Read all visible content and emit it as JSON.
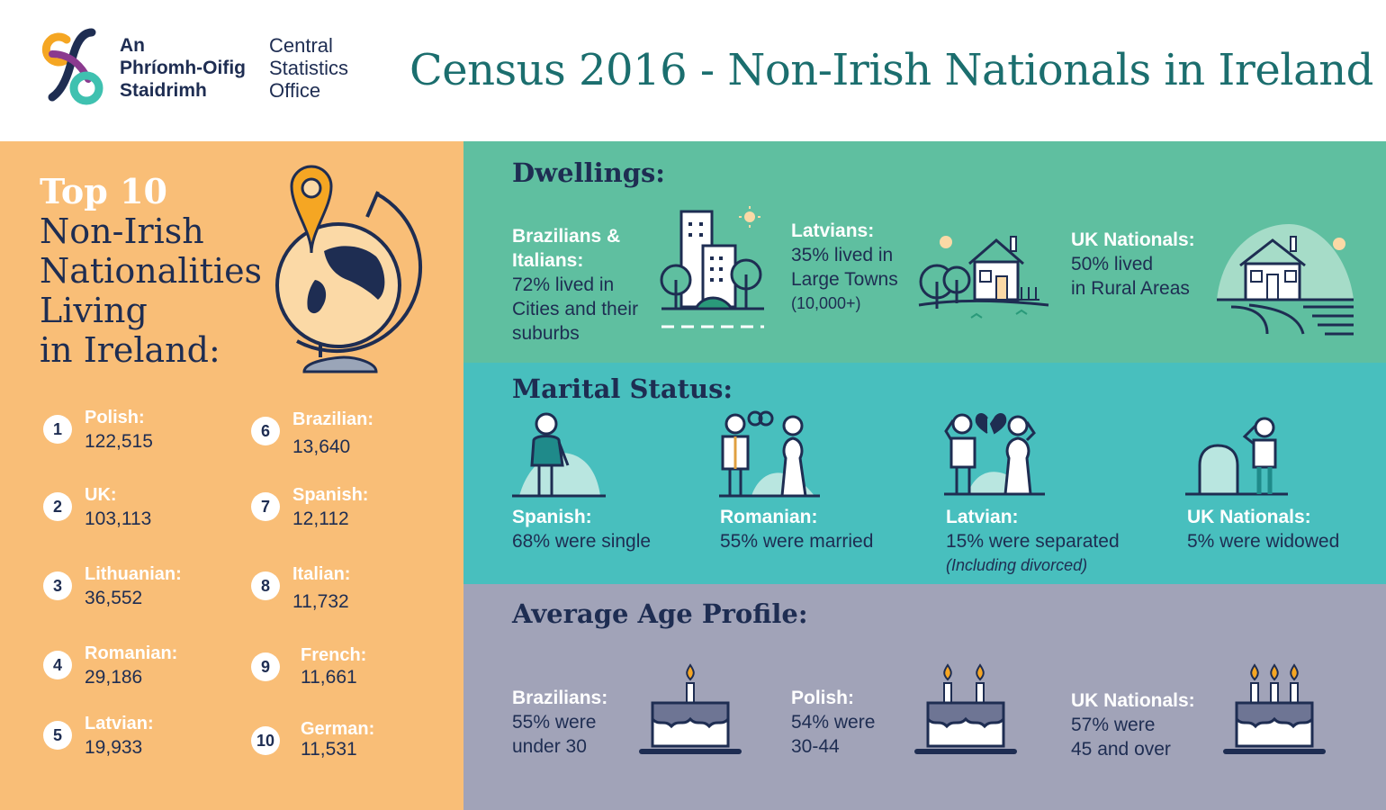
{
  "header": {
    "logo_irish": [
      "An",
      "Phríomh-Oifig",
      "Staidrimh"
    ],
    "logo_english": [
      "Central",
      "Statistics",
      "Office"
    ],
    "title": "Census 2016 - Non-Irish Nationals in Ireland"
  },
  "top10": {
    "title_highlight": "Top 10",
    "title_lines": [
      "Non-Irish",
      "Nationalities",
      "Living",
      "in Ireland:"
    ],
    "items": [
      {
        "rank": "1",
        "nationality": "Polish:",
        "count": "122,515"
      },
      {
        "rank": "2",
        "nationality": "UK:",
        "count": "103,113"
      },
      {
        "rank": "3",
        "nationality": "Lithuanian:",
        "count": "36,552"
      },
      {
        "rank": "4",
        "nationality": "Romanian:",
        "count": "29,186"
      },
      {
        "rank": "5",
        "nationality": "Latvian:",
        "count": "19,933"
      },
      {
        "rank": "6",
        "nationality": "Brazilian:",
        "count": "13,640"
      },
      {
        "rank": "7",
        "nationality": "Spanish:",
        "count": "12,112"
      },
      {
        "rank": "8",
        "nationality": "Italian:",
        "count": "11,732"
      },
      {
        "rank": "9",
        "nationality": "French:",
        "count": "11,661"
      },
      {
        "rank": "10",
        "nationality": "German:",
        "count": "11,531"
      }
    ]
  },
  "dwellings": {
    "title": "Dwellings:",
    "items": [
      {
        "group": [
          "Brazilians &",
          "Italians:"
        ],
        "lines": [
          "72% lived in",
          "Cities and their",
          "suburbs"
        ],
        "note": ""
      },
      {
        "group": [
          "Latvians:"
        ],
        "lines": [
          "35% lived in",
          "Large Towns"
        ],
        "note": "(10,000+)"
      },
      {
        "group": [
          "UK Nationals:"
        ],
        "lines": [
          "50% lived",
          "in Rural Areas"
        ],
        "note": ""
      }
    ]
  },
  "marital": {
    "title": "Marital Status:",
    "items": [
      {
        "group": "Spanish:",
        "text": "68% were single",
        "note": ""
      },
      {
        "group": "Romanian:",
        "text": "55% were married",
        "note": ""
      },
      {
        "group": "Latvian:",
        "text": "15% were separated",
        "note": "(Including divorced)"
      },
      {
        "group": "UK Nationals:",
        "text": "5% were widowed",
        "note": ""
      }
    ]
  },
  "age": {
    "title": "Average Age Profile:",
    "items": [
      {
        "group": "Brazilians:",
        "lines": [
          "55% were",
          "under 30"
        ],
        "candles": 1
      },
      {
        "group": "Polish:",
        "lines": [
          "54% were",
          "30-44"
        ],
        "candles": 2
      },
      {
        "group": "UK Nationals:",
        "lines": [
          "57% were",
          "45 and over"
        ],
        "candles": 3
      }
    ]
  },
  "colors": {
    "navy": "#1e2d52",
    "teal_title": "#1b6e6e",
    "orange_panel": "#f9be77",
    "dwellings_bg": "#5fbfa0",
    "marital_bg": "#48bfbe",
    "age_bg": "#a1a3b8"
  }
}
